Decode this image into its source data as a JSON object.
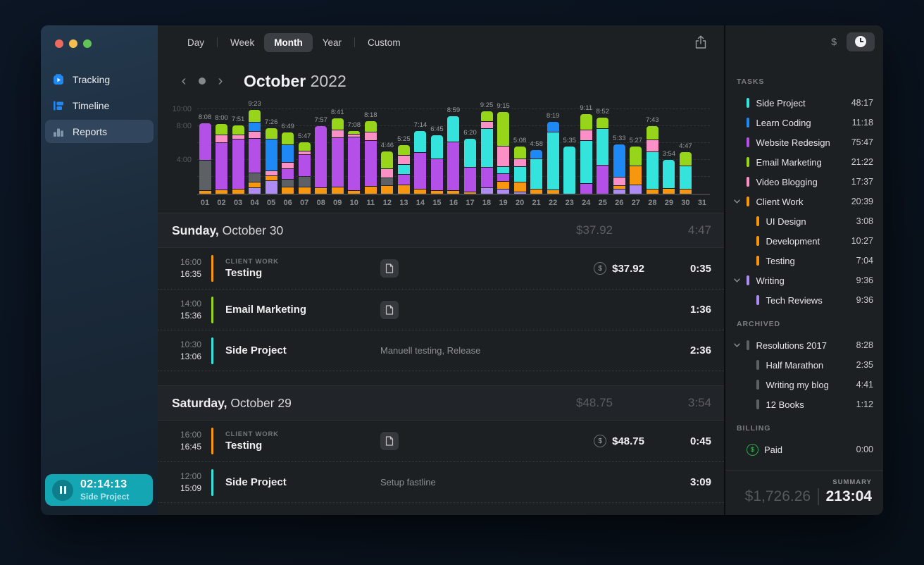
{
  "colors": {
    "palette": {
      "cyan": "#35e3dd",
      "blue": "#1e88f5",
      "purple": "#b44fe8",
      "green": "#97d51a",
      "pink": "#fa90c5",
      "orange": "#f6970f",
      "lilac": "#ae8cf3",
      "gray": "#5d6165"
    },
    "traffic": [
      "#ee6a5f",
      "#f5bd4f",
      "#61c454"
    ],
    "timer_bg": "#14a6b2"
  },
  "sidebar": {
    "nav": [
      {
        "label": "Tracking",
        "selected": false
      },
      {
        "label": "Timeline",
        "selected": false
      },
      {
        "label": "Reports",
        "selected": true
      }
    ],
    "timer": {
      "time": "02:14:13",
      "task": "Side Project"
    }
  },
  "toolbar": {
    "tabs": [
      {
        "label": "Day"
      },
      {
        "label": "Week"
      },
      {
        "label": "Month",
        "selected": true
      },
      {
        "label": "Year"
      },
      {
        "label": "Custom"
      }
    ]
  },
  "period": {
    "month": "October",
    "year": "2022"
  },
  "chart_data": {
    "type": "stacked-bar",
    "unit": "hours",
    "ymax_hours": 10.6,
    "y_ticks": [
      {
        "label": "10:00",
        "hours": 10
      },
      {
        "label": "8:00",
        "hours": 8
      },
      {
        "label": "4:00",
        "hours": 4
      }
    ],
    "gridline_hours": [
      2,
      4,
      6,
      8,
      10
    ],
    "legend_note": "segment colors map to task colors in colors.palette",
    "bars": [
      {
        "day": "01",
        "total": "8:08",
        "segments": [
          [
            "orange",
            0.33
          ],
          [
            "gray",
            3.5
          ],
          [
            "purple",
            4.3
          ]
        ]
      },
      {
        "day": "02",
        "total": "8:00",
        "segments": [
          [
            "orange",
            0.42
          ],
          [
            "purple",
            5.5
          ],
          [
            "pink",
            0.83
          ],
          [
            "green",
            1.25
          ]
        ]
      },
      {
        "day": "03",
        "total": "7:51",
        "segments": [
          [
            "orange",
            0.5
          ],
          [
            "purple",
            5.83
          ],
          [
            "pink",
            0.43
          ],
          [
            "green",
            1.09
          ]
        ]
      },
      {
        "day": "04",
        "total": "9:23",
        "segments": [
          [
            "lilac",
            0.67
          ],
          [
            "orange",
            0.58
          ],
          [
            "gray",
            1.0
          ],
          [
            "purple",
            4.0
          ],
          [
            "pink",
            0.75
          ],
          [
            "blue",
            1.0
          ],
          [
            "green",
            1.38
          ]
        ]
      },
      {
        "day": "05",
        "total": "7:26",
        "segments": [
          [
            "lilac",
            1.5
          ],
          [
            "orange",
            0.5
          ],
          [
            "pink",
            0.5
          ],
          [
            "blue",
            3.67
          ],
          [
            "green",
            1.26
          ]
        ]
      },
      {
        "day": "06",
        "total": "6:49",
        "segments": [
          [
            "orange",
            0.75
          ],
          [
            "gray",
            0.83
          ],
          [
            "purple",
            1.17
          ],
          [
            "pink",
            0.67
          ],
          [
            "blue",
            2.0
          ],
          [
            "green",
            1.4
          ]
        ]
      },
      {
        "day": "07",
        "total": "5:47",
        "segments": [
          [
            "orange",
            0.75
          ],
          [
            "gray",
            1.17
          ],
          [
            "purple",
            2.5
          ],
          [
            "pink",
            0.33
          ],
          [
            "green",
            1.03
          ]
        ]
      },
      {
        "day": "08",
        "total": "7:57",
        "segments": [
          [
            "orange",
            0.67
          ],
          [
            "purple",
            7.28
          ]
        ]
      },
      {
        "day": "09",
        "total": "8:41",
        "segments": [
          [
            "orange",
            0.75
          ],
          [
            "purple",
            5.75
          ],
          [
            "pink",
            0.83
          ],
          [
            "green",
            1.35
          ]
        ]
      },
      {
        "day": "10",
        "total": "7:08",
        "segments": [
          [
            "orange",
            0.33
          ],
          [
            "purple",
            6.25
          ],
          [
            "pink",
            0.22
          ],
          [
            "green",
            0.33
          ]
        ]
      },
      {
        "day": "11",
        "total": "8:18",
        "segments": [
          [
            "orange",
            0.83
          ],
          [
            "purple",
            5.33
          ],
          [
            "pink",
            0.92
          ],
          [
            "green",
            1.22
          ]
        ]
      },
      {
        "day": "12",
        "total": "4:46",
        "segments": [
          [
            "orange",
            0.92
          ],
          [
            "gray",
            0.83
          ],
          [
            "pink",
            1.0
          ],
          [
            "green",
            2.02
          ]
        ]
      },
      {
        "day": "13",
        "total": "5:25",
        "segments": [
          [
            "orange",
            1.0
          ],
          [
            "purple",
            1.17
          ],
          [
            "cyan",
            1.08
          ],
          [
            "pink",
            1.0
          ],
          [
            "green",
            1.17
          ]
        ]
      },
      {
        "day": "14",
        "total": "7:14",
        "segments": [
          [
            "orange",
            0.5
          ],
          [
            "purple",
            4.23
          ],
          [
            "cyan",
            2.5
          ]
        ]
      },
      {
        "day": "15",
        "total": "6:45",
        "segments": [
          [
            "orange",
            0.33
          ],
          [
            "purple",
            3.67
          ],
          [
            "cyan",
            2.75
          ]
        ]
      },
      {
        "day": "16",
        "total": "8:59",
        "segments": [
          [
            "orange",
            0.33
          ],
          [
            "purple",
            5.67
          ],
          [
            "cyan",
            2.98
          ]
        ]
      },
      {
        "day": "17",
        "total": "6:20",
        "segments": [
          [
            "orange",
            0.17
          ],
          [
            "purple",
            2.83
          ],
          [
            "cyan",
            3.33
          ]
        ]
      },
      {
        "day": "18",
        "total": "9:25",
        "segments": [
          [
            "lilac",
            0.67
          ],
          [
            "purple",
            2.33
          ],
          [
            "cyan",
            4.5
          ],
          [
            "pink",
            0.75
          ],
          [
            "green",
            1.17
          ]
        ]
      },
      {
        "day": "19",
        "total": "9:15",
        "segments": [
          [
            "lilac",
            0.5
          ],
          [
            "orange",
            0.83
          ],
          [
            "purple",
            0.83
          ],
          [
            "cyan",
            0.75
          ],
          [
            "pink",
            2.34
          ],
          [
            "green",
            4.0
          ]
        ]
      },
      {
        "day": "20",
        "total": "5:08",
        "segments": [
          [
            "lilac",
            0.1
          ],
          [
            "orange",
            1.08
          ],
          [
            "cyan",
            1.73
          ],
          [
            "pink",
            0.8
          ],
          [
            "green",
            1.42
          ]
        ]
      },
      {
        "day": "21",
        "total": "4:58",
        "segments": [
          [
            "orange",
            0.5
          ],
          [
            "cyan",
            3.5
          ],
          [
            "blue",
            0.97
          ]
        ]
      },
      {
        "day": "22",
        "total": "8:19",
        "segments": [
          [
            "orange",
            0.42
          ],
          [
            "cyan",
            6.75
          ],
          [
            "blue",
            1.15
          ]
        ]
      },
      {
        "day": "23",
        "total": "5:35",
        "segments": [
          [
            "cyan",
            5.58
          ]
        ]
      },
      {
        "day": "24",
        "total": "9:11",
        "segments": [
          [
            "purple",
            1.17
          ],
          [
            "cyan",
            5.0
          ],
          [
            "pink",
            1.17
          ],
          [
            "green",
            1.84
          ]
        ]
      },
      {
        "day": "25",
        "total": "8:52",
        "segments": [
          [
            "purple",
            3.33
          ],
          [
            "cyan",
            4.25
          ],
          [
            "green",
            1.29
          ]
        ]
      },
      {
        "day": "26",
        "total": "5:33",
        "segments": [
          [
            "lilac",
            0.5
          ],
          [
            "orange",
            0.33
          ],
          [
            "pink",
            0.92
          ],
          [
            "blue",
            3.8
          ]
        ]
      },
      {
        "day": "27",
        "total": "5:27",
        "segments": [
          [
            "lilac",
            1.0
          ],
          [
            "orange",
            2.17
          ],
          [
            "green",
            2.28
          ]
        ]
      },
      {
        "day": "28",
        "total": "7:43",
        "segments": [
          [
            "orange",
            0.5
          ],
          [
            "cyan",
            4.33
          ],
          [
            "pink",
            1.33
          ],
          [
            "green",
            1.56
          ]
        ]
      },
      {
        "day": "29",
        "total": "3:54",
        "segments": [
          [
            "orange",
            0.58
          ],
          [
            "cyan",
            3.32
          ]
        ]
      },
      {
        "day": "30",
        "total": "4:47",
        "segments": [
          [
            "orange",
            0.5
          ],
          [
            "cyan",
            2.67
          ],
          [
            "green",
            1.61
          ]
        ]
      },
      {
        "day": "31",
        "total": "",
        "segments": []
      }
    ]
  },
  "sections": [
    {
      "day": "Sunday,",
      "date": " October 30",
      "money": "$37.92",
      "duration": "4:47",
      "entries": [
        {
          "start": "16:00",
          "end": "16:35",
          "color": "orange",
          "parent": "CLIENT WORK",
          "title": "Testing",
          "note_icon": true,
          "money": "$37.92",
          "duration": "0:35"
        },
        {
          "start": "14:00",
          "end": "15:36",
          "color": "green",
          "title": "Email Marketing",
          "note_icon": true,
          "duration": "1:36"
        },
        {
          "start": "10:30",
          "end": "13:06",
          "color": "cyan",
          "title": "Side Project",
          "note": "Manuell testing, Release",
          "duration": "2:36"
        }
      ]
    },
    {
      "day": "Saturday,",
      "date": " October 29",
      "money": "$48.75",
      "duration": "3:54",
      "entries": [
        {
          "start": "16:00",
          "end": "16:45",
          "color": "orange",
          "parent": "CLIENT WORK",
          "title": "Testing",
          "note_icon": true,
          "money": "$48.75",
          "duration": "0:45"
        },
        {
          "start": "12:00",
          "end": "15:09",
          "color": "cyan",
          "title": "Side Project",
          "note": "Setup fastline",
          "duration": "3:09"
        }
      ]
    }
  ],
  "panel": {
    "currency_label": "$",
    "sections": [
      {
        "title": "TASKS",
        "items": [
          {
            "name": "Side Project",
            "color": "cyan",
            "duration": "48:17"
          },
          {
            "name": "Learn Coding",
            "color": "blue",
            "duration": "11:18"
          },
          {
            "name": "Website Redesign",
            "color": "purple",
            "duration": "75:47"
          },
          {
            "name": "Email Marketing",
            "color": "green",
            "duration": "21:22"
          },
          {
            "name": "Video Blogging",
            "color": "pink",
            "duration": "17:37"
          },
          {
            "name": "Client Work",
            "color": "orange",
            "duration": "20:39",
            "expandable": true
          },
          {
            "name": "UI Design",
            "color": "orange",
            "duration": "3:08",
            "sub": true
          },
          {
            "name": "Development",
            "color": "orange",
            "duration": "10:27",
            "sub": true
          },
          {
            "name": "Testing",
            "color": "orange",
            "duration": "7:04",
            "sub": true
          },
          {
            "name": "Writing",
            "color": "lilac",
            "duration": "9:36",
            "expandable": true
          },
          {
            "name": "Tech Reviews",
            "color": "lilac",
            "duration": "9:36",
            "sub": true
          }
        ]
      },
      {
        "title": "ARCHIVED",
        "items": [
          {
            "name": "Resolutions 2017",
            "color": "gray",
            "duration": "8:28",
            "expandable": true
          },
          {
            "name": "Half Marathon",
            "color": "gray",
            "duration": "2:35",
            "sub": true
          },
          {
            "name": "Writing my blog",
            "color": "gray",
            "duration": "4:41",
            "sub": true
          },
          {
            "name": "12 Books",
            "color": "gray",
            "duration": "1:12",
            "sub": true
          }
        ]
      },
      {
        "title": "BILLING",
        "items": [
          {
            "name": "Paid",
            "paid_icon": true,
            "duration": "0:00"
          }
        ]
      }
    ],
    "summary": {
      "label": "SUMMARY",
      "money": "$1,726.26",
      "time": "213:04"
    }
  }
}
